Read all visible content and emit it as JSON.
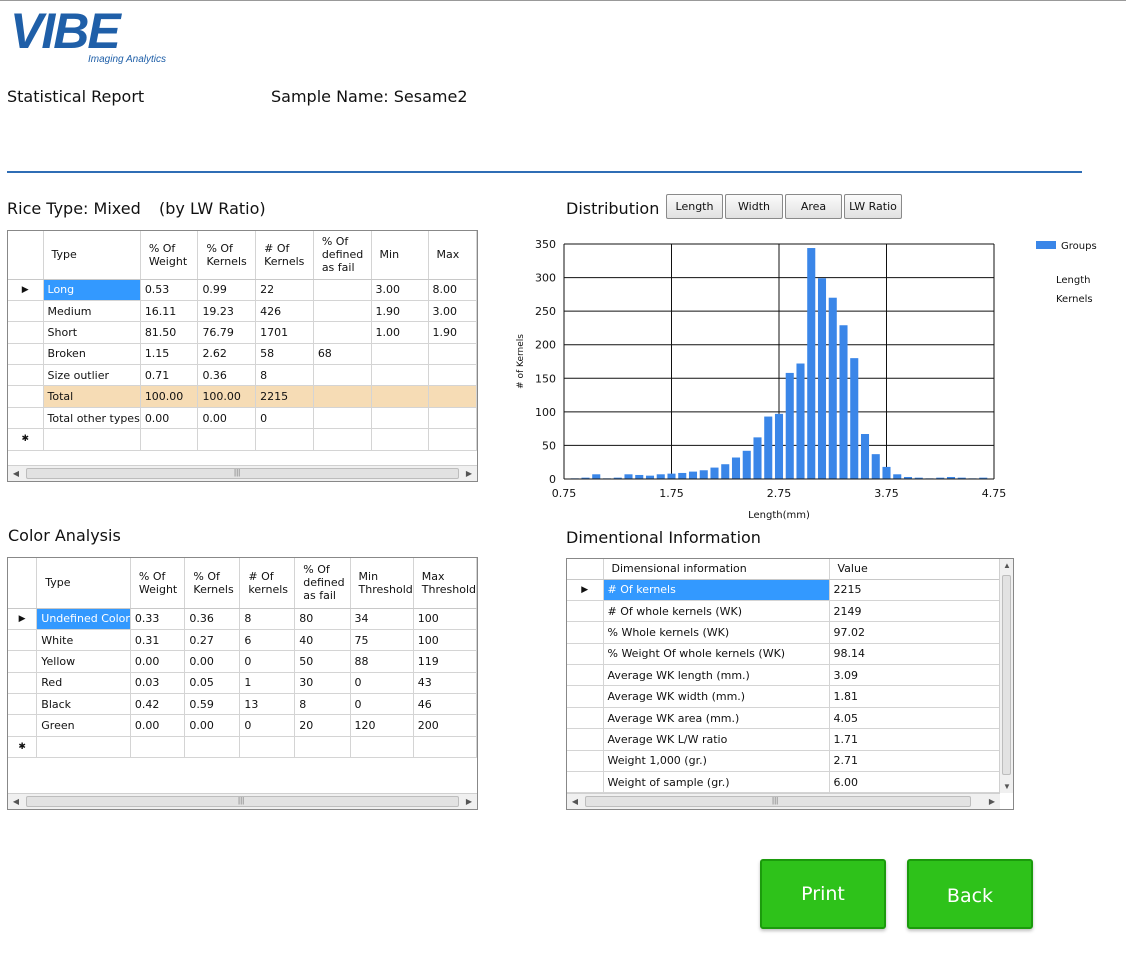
{
  "logo": {
    "text": "VIBE",
    "subtitle": "Imaging Analytics"
  },
  "header": {
    "title": "Statistical Report",
    "sample_name": "Sample Name: Sesame2"
  },
  "rice_section": {
    "title": "Rice Type: Mixed",
    "note": "(by LW Ratio)"
  },
  "rice_table": {
    "columns": [
      "Type",
      "% Of Weight",
      "% Of Kernels",
      "# Of Kernels",
      "% Of defined as fail",
      "Min",
      "Max"
    ],
    "rows": [
      [
        "Long",
        "0.53",
        "0.99",
        "22",
        "",
        "3.00",
        "8.00"
      ],
      [
        "Medium",
        "16.11",
        "19.23",
        "426",
        "",
        "1.90",
        "3.00"
      ],
      [
        "Short",
        "81.50",
        "76.79",
        "1701",
        "",
        "1.00",
        "1.90"
      ],
      [
        "Broken",
        "1.15",
        "2.62",
        "58",
        "68",
        "",
        ""
      ],
      [
        "Size outlier",
        "0.71",
        "0.36",
        "8",
        "",
        "",
        ""
      ],
      [
        "Total",
        "100.00",
        "100.00",
        "2215",
        "",
        "",
        ""
      ],
      [
        "Total other types",
        "0.00",
        "0.00",
        "0",
        "",
        "",
        ""
      ]
    ]
  },
  "color_section": {
    "title": "Color Analysis"
  },
  "color_table": {
    "columns": [
      "Type",
      "% Of Weight",
      "% Of Kernels",
      "# Of kernels",
      "% Of defined as fail",
      "Min Threshold",
      "Max Threshold"
    ],
    "rows": [
      [
        "Undefined Color",
        "0.33",
        "0.36",
        "8",
        "80",
        "34",
        "100"
      ],
      [
        "White",
        "0.31",
        "0.27",
        "6",
        "40",
        "75",
        "100"
      ],
      [
        "Yellow",
        "0.00",
        "0.00",
        "0",
        "50",
        "88",
        "119"
      ],
      [
        "Red",
        "0.03",
        "0.05",
        "1",
        "30",
        "0",
        "43"
      ],
      [
        "Black",
        "0.42",
        "0.59",
        "13",
        "8",
        "0",
        "46"
      ],
      [
        "Green",
        "0.00",
        "0.00",
        "0",
        "20",
        "120",
        "200"
      ]
    ]
  },
  "distribution": {
    "title": "Distribution",
    "buttons": [
      "Length",
      "Width",
      "Area",
      "LW Ratio"
    ]
  },
  "chart_data": {
    "type": "bar",
    "xlabel": "Length(mm)",
    "ylabel": "# of Kernels",
    "xlim": [
      0.75,
      4.75
    ],
    "ylim": [
      0,
      350
    ],
    "xticks": [
      0.75,
      1.75,
      2.75,
      3.75,
      4.75
    ],
    "yticks": [
      0,
      50,
      100,
      150,
      200,
      250,
      300,
      350
    ],
    "grid": true,
    "legend": {
      "placement": "top-right",
      "series_name": "Groups",
      "lines": [
        "Length",
        "Kernels"
      ]
    },
    "color": "#3a86e8",
    "x": [
      0.85,
      0.95,
      1.05,
      1.15,
      1.25,
      1.35,
      1.45,
      1.55,
      1.65,
      1.75,
      1.85,
      1.95,
      2.05,
      2.15,
      2.25,
      2.35,
      2.45,
      2.55,
      2.65,
      2.75,
      2.85,
      2.95,
      3.05,
      3.15,
      3.25,
      3.35,
      3.45,
      3.55,
      3.65,
      3.75,
      3.85,
      3.95,
      4.05,
      4.15,
      4.25,
      4.35,
      4.45,
      4.55,
      4.65
    ],
    "values": [
      1,
      2,
      7,
      1,
      2,
      7,
      6,
      5,
      7,
      8,
      9,
      11,
      13,
      17,
      22,
      32,
      42,
      62,
      93,
      97,
      158,
      172,
      344,
      299,
      270,
      229,
      180,
      67,
      37,
      18,
      7,
      3,
      2,
      1,
      2,
      3,
      2,
      1,
      2
    ]
  },
  "dim_section": {
    "title": "Dimentional Information"
  },
  "dim_table": {
    "columns": [
      "Dimensional information",
      "Value"
    ],
    "rows": [
      [
        "# Of kernels",
        "2215"
      ],
      [
        "# Of whole kernels (WK)",
        "2149"
      ],
      [
        "% Whole kernels (WK)",
        "97.02"
      ],
      [
        "% Weight Of whole kernels (WK)",
        "98.14"
      ],
      [
        "Average WK length (mm.)",
        "3.09"
      ],
      [
        "Average  WK width (mm.)",
        "1.81"
      ],
      [
        "Average  WK area (mm.)",
        "4.05"
      ],
      [
        "Average  WK L/W ratio",
        "1.71"
      ],
      [
        "Weight 1,000 (gr.)",
        "2.71"
      ],
      [
        "Weight of sample (gr.)",
        "6.00"
      ]
    ]
  },
  "actions": {
    "print": "Print",
    "back": "Back"
  }
}
